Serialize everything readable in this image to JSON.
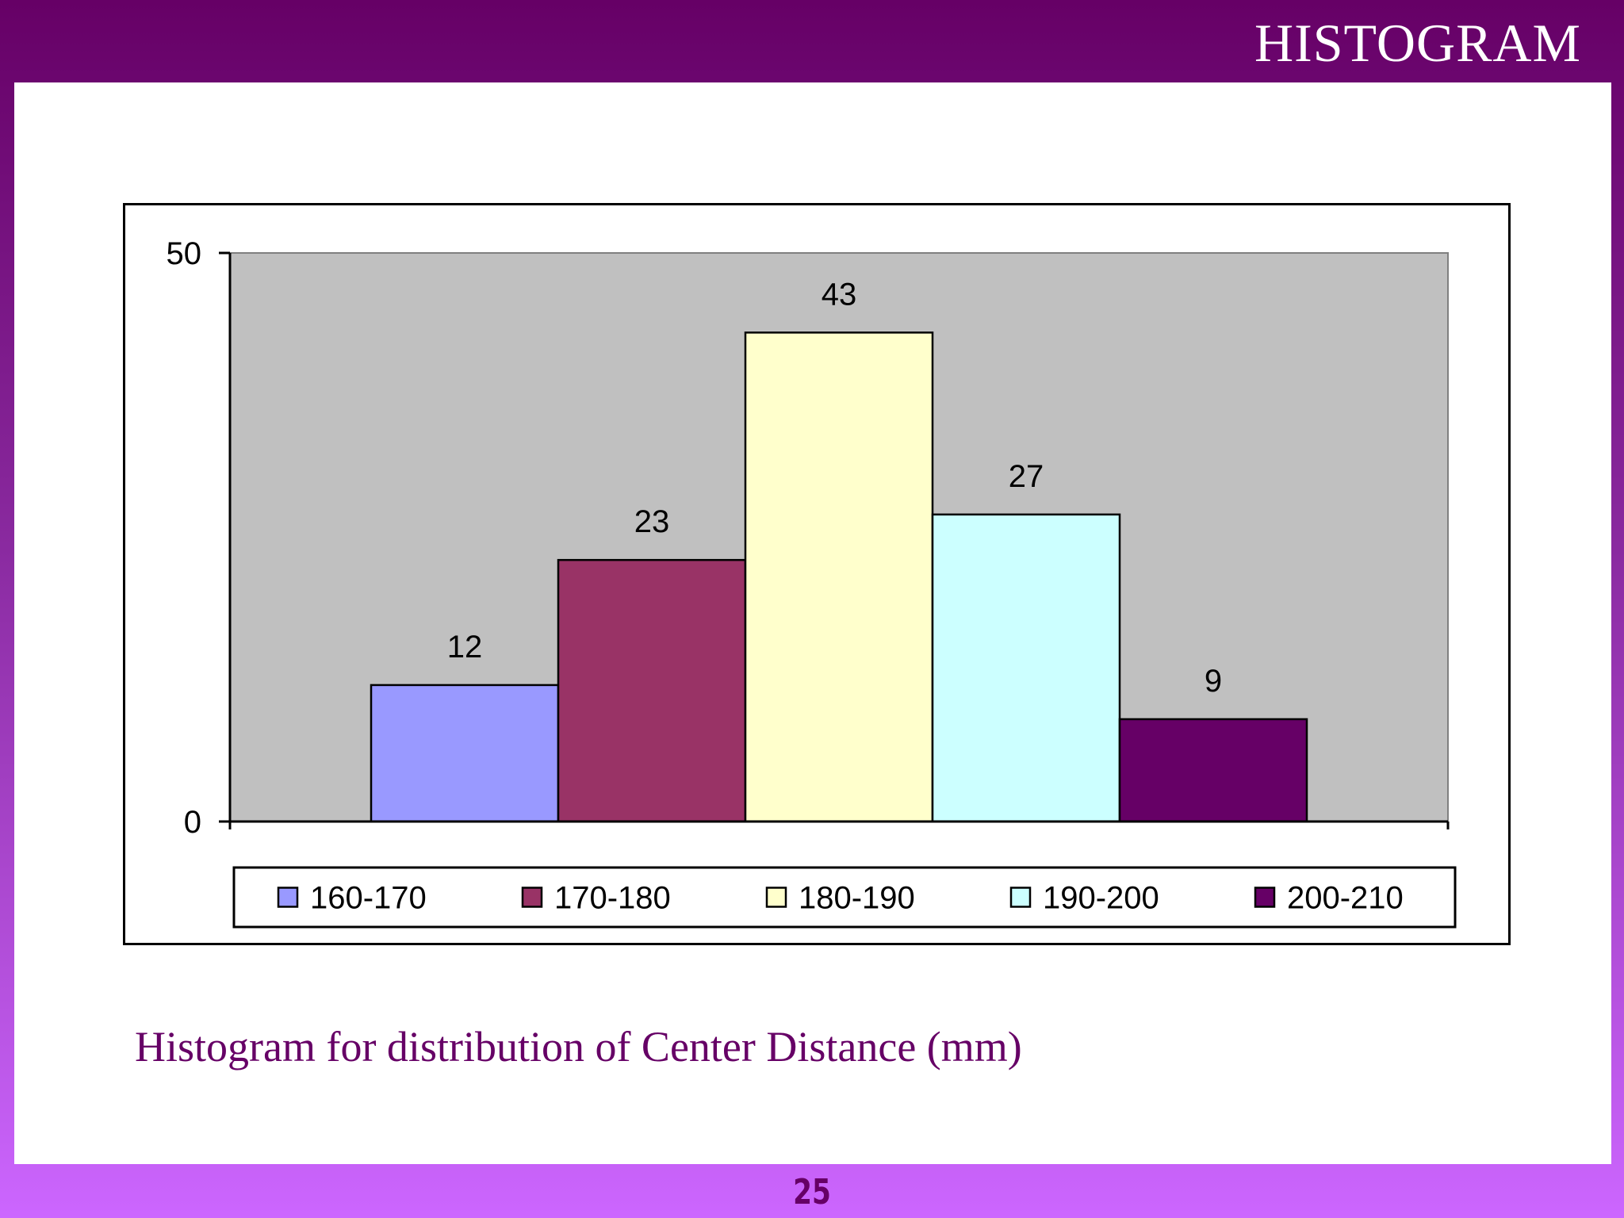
{
  "slide": {
    "title": "HISTOGRAM",
    "caption": "Histogram for distribution of Center Distance (mm)",
    "page_number": "25"
  },
  "colors": {
    "header_band": "#660066",
    "bottom_band": "#cc66ff",
    "plot_background": "#c0c0c0",
    "caption_text": "#660066"
  },
  "chart_data": {
    "type": "bar",
    "title": "",
    "xlabel": "",
    "ylabel": "",
    "ylim": [
      0,
      50
    ],
    "yticks": [
      "0",
      "50"
    ],
    "grid": false,
    "legend_position": "bottom",
    "bar_gap": "none",
    "series": [
      {
        "name": "160-170",
        "value": 12,
        "color": "#9999ff"
      },
      {
        "name": "170-180",
        "value": 23,
        "color": "#993366"
      },
      {
        "name": "180-190",
        "value": 43,
        "color": "#ffffcc"
      },
      {
        "name": "190-200",
        "value": 27,
        "color": "#ccffff"
      },
      {
        "name": "200-210",
        "value": 9,
        "color": "#660066"
      }
    ]
  }
}
